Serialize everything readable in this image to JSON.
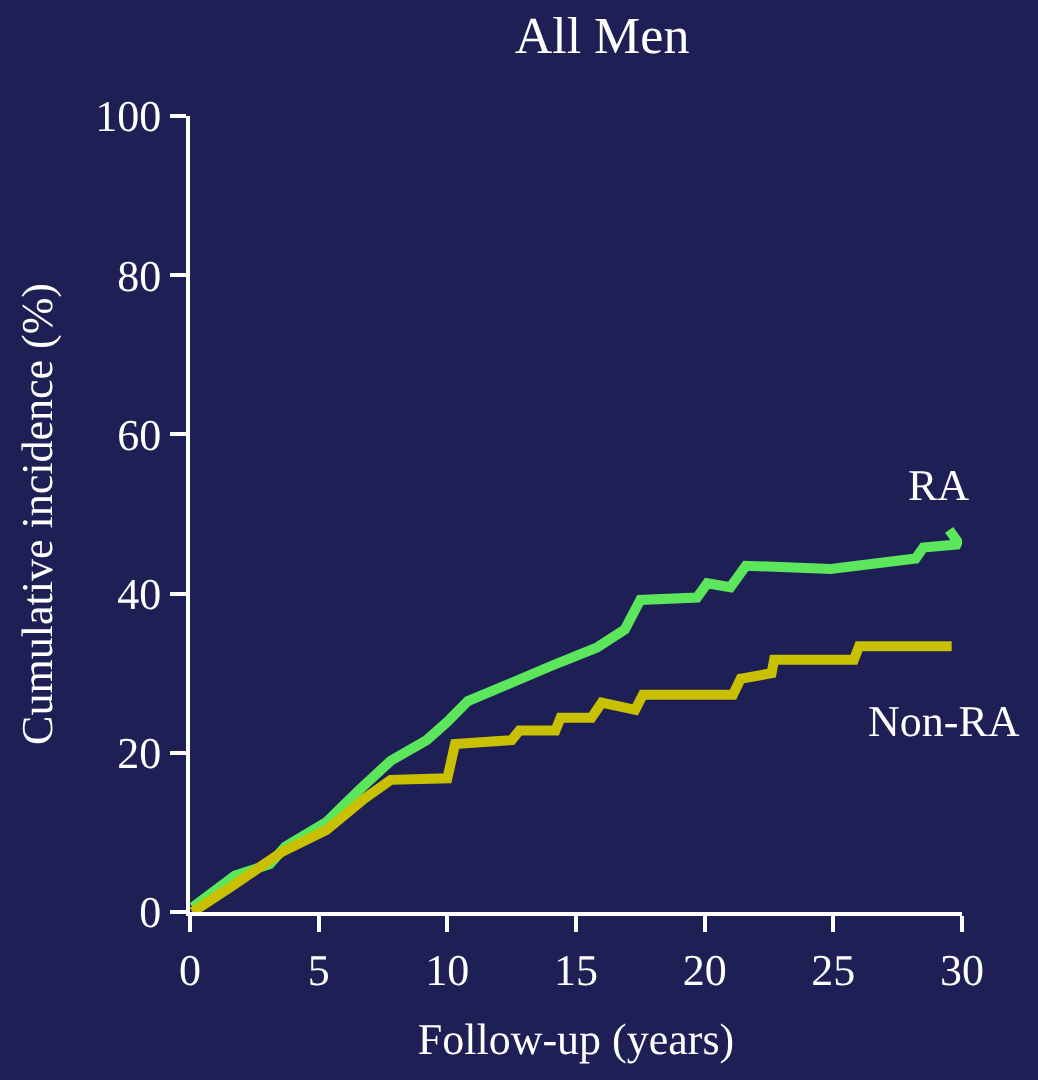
{
  "chart_data": {
    "type": "line",
    "title": "All Men",
    "xlabel": "Follow-up (years)",
    "ylabel": "Cumulative incidence (%)",
    "xlim": [
      0,
      30
    ],
    "xticks": [
      0,
      5,
      10,
      15,
      20,
      25,
      30
    ],
    "ylim": [
      0,
      100
    ],
    "yticks": [
      0,
      20,
      40,
      60,
      80,
      100
    ],
    "grid": false,
    "legend": false,
    "marker": "none",
    "line_style": "solid",
    "series": [
      {
        "name": "RA",
        "color": "#5ce65c",
        "x": [
          0.1,
          1.75,
          3.1,
          3.7,
          5.3,
          6.6,
          7.8,
          9.2,
          10.0,
          10.8,
          12.5,
          14.1,
          15.8,
          16.9,
          17.5,
          19.7,
          20.1,
          21.0,
          21.6,
          24.9,
          28.2,
          28.5,
          29.9,
          29.5
        ],
        "values": [
          0.6,
          4.6,
          6.0,
          8.2,
          11.3,
          15.4,
          19,
          21.6,
          23.9,
          26.5,
          28.8,
          31,
          33.2,
          35.5,
          39.2,
          39.5,
          41.3,
          40.8,
          43.5,
          43.1,
          44.4,
          45.8,
          46.2,
          48
        ]
      },
      {
        "name": "Non-RA",
        "color": "#c8c000",
        "x": [
          0.1,
          1.75,
          3.6,
          5.3,
          6.8,
          7.8,
          10.0,
          10.3,
          12.5,
          12.8,
          14.2,
          14.4,
          15.6,
          16.0,
          17.3,
          17.6,
          21.1,
          21.4,
          22.6,
          22.7,
          25.8,
          26.0,
          29.6
        ],
        "values": [
          0,
          3.5,
          7.6,
          10.3,
          14.3,
          16.6,
          16.8,
          21.1,
          21.6,
          22.8,
          22.8,
          24.4,
          24.4,
          26.3,
          25.4,
          27.3,
          27.3,
          29.3,
          30.0,
          31.7,
          31.7,
          33.4,
          33.4
        ]
      }
    ]
  }
}
